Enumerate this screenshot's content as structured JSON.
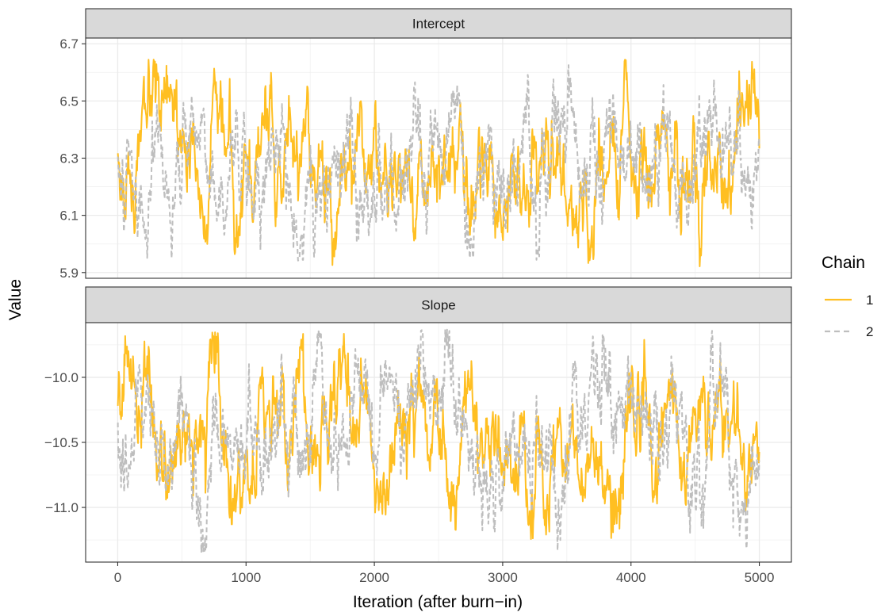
{
  "chart_data": {
    "type": "line",
    "xlabel": "Iteration (after burn−in)",
    "ylabel": "Value",
    "legend": {
      "title": "Chain",
      "placement": "right"
    },
    "grid": true,
    "x_range": [
      1,
      5000
    ],
    "xlim": [
      -250,
      5250
    ],
    "x_ticks": [
      "0",
      "1000",
      "2000",
      "3000",
      "4000",
      "5000"
    ],
    "x_tick_values": [
      0,
      1000,
      2000,
      3000,
      4000,
      5000
    ],
    "colors": {
      "chain_1": "#FFBF22",
      "chain_2": "#BEBEBE"
    },
    "series": [
      {
        "name": "1",
        "style": "solid",
        "color": "#FFBF22"
      },
      {
        "name": "2",
        "style": "dashed",
        "color": "#BEBEBE"
      }
    ],
    "panels": [
      {
        "label": "Intercept",
        "ylim": [
          5.88,
          6.72
        ],
        "y_ticks": [
          "5.9",
          "6.1",
          "6.3",
          "6.5",
          "6.7"
        ],
        "y_tick_values": [
          5.9,
          6.1,
          6.3,
          6.5,
          6.7
        ],
        "series_summary": [
          {
            "name": "1",
            "center": 6.28,
            "min": 5.92,
            "max": 6.65
          },
          {
            "name": "2",
            "center": 6.28,
            "min": 5.94,
            "max": 6.68
          }
        ]
      },
      {
        "label": "Slope",
        "ylim": [
          -11.42,
          -9.58
        ],
        "y_ticks": [
          "−11.0",
          "−10.5",
          "−10.0"
        ],
        "y_tick_values": [
          -11.0,
          -10.5,
          -10.0
        ],
        "series_summary": [
          {
            "name": "1",
            "center": -10.4,
            "min": -11.27,
            "max": -9.65
          },
          {
            "name": "2",
            "center": -10.4,
            "min": -11.35,
            "max": -9.63
          }
        ]
      }
    ]
  }
}
